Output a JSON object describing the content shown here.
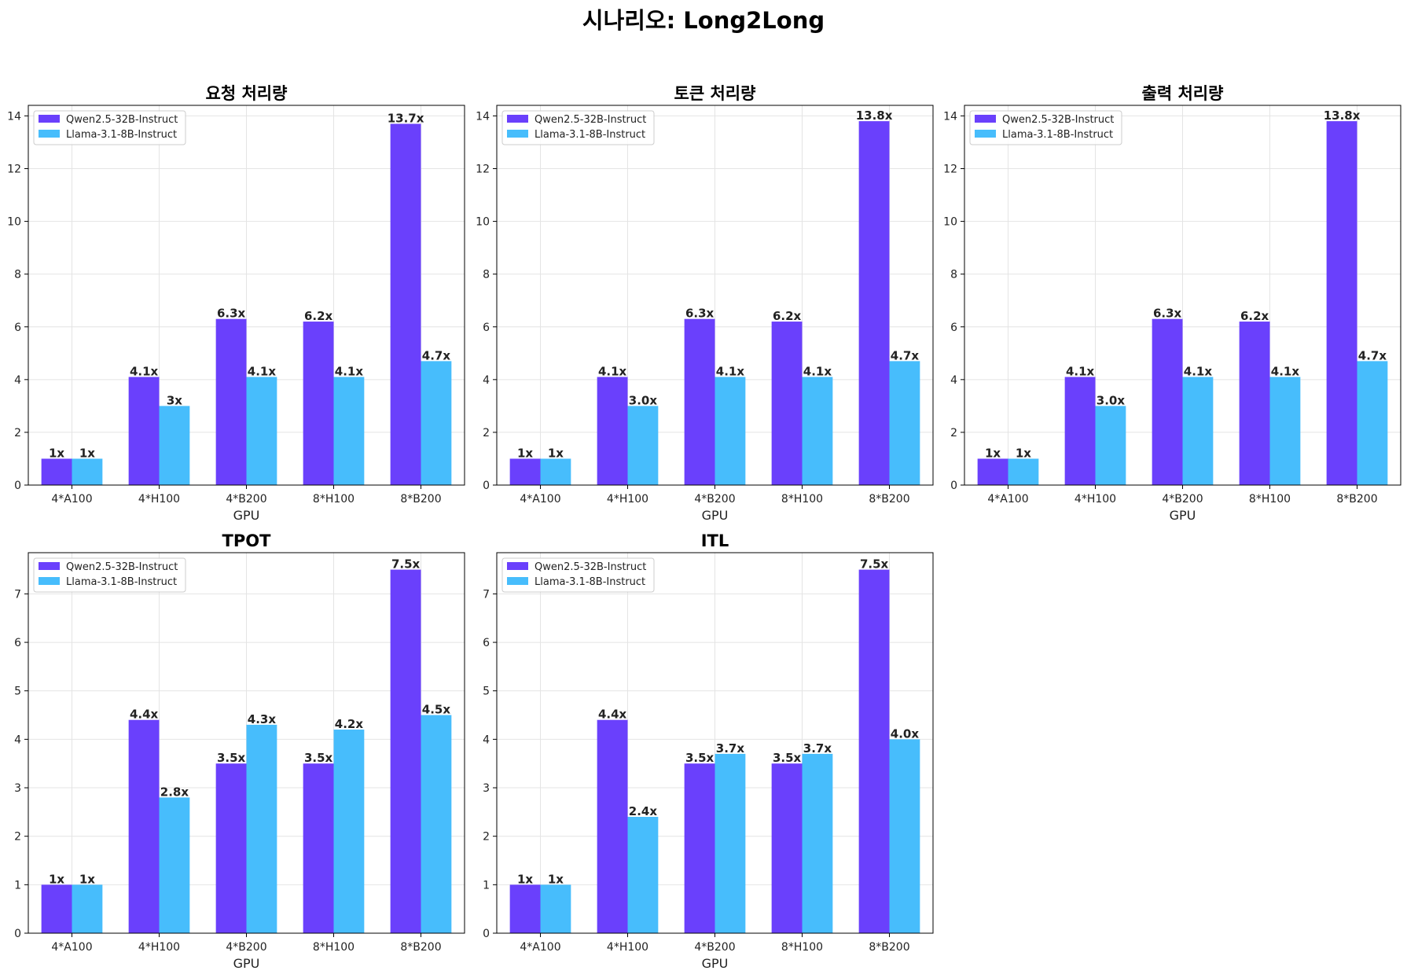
{
  "figure_title": "시나리오: Long2Long",
  "colors": {
    "series1": "#6a40fc",
    "series2": "#47bdfc",
    "grid": "#e4e4e4",
    "axis": "#000000",
    "text": "#222222"
  },
  "chart_data": [
    {
      "type": "bar",
      "title": "요청 처리량",
      "xlabel": "GPU",
      "ylabel": "",
      "ylim": [
        0,
        14.4
      ],
      "yticks": [
        0,
        2,
        4,
        6,
        8,
        10,
        12,
        14
      ],
      "grid": true,
      "legend": "top-left",
      "categories": [
        "4*A100",
        "4*H100",
        "4*B200",
        "8*H100",
        "8*B200"
      ],
      "series": [
        {
          "name": "Qwen2.5-32B-Instruct",
          "values": [
            1,
            4.1,
            6.3,
            6.2,
            13.7
          ],
          "labels": [
            "1x",
            "4.1x",
            "6.3x",
            "6.2x",
            "13.7x"
          ]
        },
        {
          "name": "Llama-3.1-8B-Instruct",
          "values": [
            1,
            3,
            4.1,
            4.1,
            4.7
          ],
          "labels": [
            "1x",
            "3x",
            "4.1x",
            "4.1x",
            "4.7x"
          ]
        }
      ]
    },
    {
      "type": "bar",
      "title": "토큰 처리량",
      "xlabel": "GPU",
      "ylabel": "",
      "ylim": [
        0,
        14.4
      ],
      "yticks": [
        0,
        2,
        4,
        6,
        8,
        10,
        12,
        14
      ],
      "grid": true,
      "legend": "top-left",
      "categories": [
        "4*A100",
        "4*H100",
        "4*B200",
        "8*H100",
        "8*B200"
      ],
      "series": [
        {
          "name": "Qwen2.5-32B-Instruct",
          "values": [
            1,
            4.1,
            6.3,
            6.2,
            13.8
          ],
          "labels": [
            "1x",
            "4.1x",
            "6.3x",
            "6.2x",
            "13.8x"
          ]
        },
        {
          "name": "Llama-3.1-8B-Instruct",
          "values": [
            1,
            3.0,
            4.1,
            4.1,
            4.7
          ],
          "labels": [
            "1x",
            "3.0x",
            "4.1x",
            "4.1x",
            "4.7x"
          ]
        }
      ]
    },
    {
      "type": "bar",
      "title": "출력 처리량",
      "xlabel": "GPU",
      "ylabel": "",
      "ylim": [
        0,
        14.4
      ],
      "yticks": [
        0,
        2,
        4,
        6,
        8,
        10,
        12,
        14
      ],
      "grid": true,
      "legend": "top-left",
      "categories": [
        "4*A100",
        "4*H100",
        "4*B200",
        "8*H100",
        "8*B200"
      ],
      "series": [
        {
          "name": "Qwen2.5-32B-Instruct",
          "values": [
            1,
            4.1,
            6.3,
            6.2,
            13.8
          ],
          "labels": [
            "1x",
            "4.1x",
            "6.3x",
            "6.2x",
            "13.8x"
          ]
        },
        {
          "name": "Llama-3.1-8B-Instruct",
          "values": [
            1,
            3.0,
            4.1,
            4.1,
            4.7
          ],
          "labels": [
            "1x",
            "3.0x",
            "4.1x",
            "4.1x",
            "4.7x"
          ]
        }
      ]
    },
    {
      "type": "bar",
      "title": "TPOT",
      "xlabel": "GPU",
      "ylabel": "",
      "ylim": [
        0,
        7.85
      ],
      "yticks": [
        0,
        1,
        2,
        3,
        4,
        5,
        6,
        7
      ],
      "grid": true,
      "legend": "top-left",
      "categories": [
        "4*A100",
        "4*H100",
        "4*B200",
        "8*H100",
        "8*B200"
      ],
      "series": [
        {
          "name": "Qwen2.5-32B-Instruct",
          "values": [
            1,
            4.4,
            3.5,
            3.5,
            7.5
          ],
          "labels": [
            "1x",
            "4.4x",
            "3.5x",
            "3.5x",
            "7.5x"
          ]
        },
        {
          "name": "Llama-3.1-8B-Instruct",
          "values": [
            1,
            2.8,
            4.3,
            4.2,
            4.5
          ],
          "labels": [
            "1x",
            "2.8x",
            "4.3x",
            "4.2x",
            "4.5x"
          ]
        }
      ]
    },
    {
      "type": "bar",
      "title": "ITL",
      "xlabel": "GPU",
      "ylabel": "",
      "ylim": [
        0,
        7.85
      ],
      "yticks": [
        0,
        1,
        2,
        3,
        4,
        5,
        6,
        7
      ],
      "grid": true,
      "legend": "top-left",
      "categories": [
        "4*A100",
        "4*H100",
        "4*B200",
        "8*H100",
        "8*B200"
      ],
      "series": [
        {
          "name": "Qwen2.5-32B-Instruct",
          "values": [
            1,
            4.4,
            3.5,
            3.5,
            7.5
          ],
          "labels": [
            "1x",
            "4.4x",
            "3.5x",
            "3.5x",
            "7.5x"
          ]
        },
        {
          "name": "Llama-3.1-8B-Instruct",
          "values": [
            1,
            2.4,
            3.7,
            3.7,
            4.0
          ],
          "labels": [
            "1x",
            "2.4x",
            "3.7x",
            "3.7x",
            "4.0x"
          ]
        }
      ]
    }
  ]
}
